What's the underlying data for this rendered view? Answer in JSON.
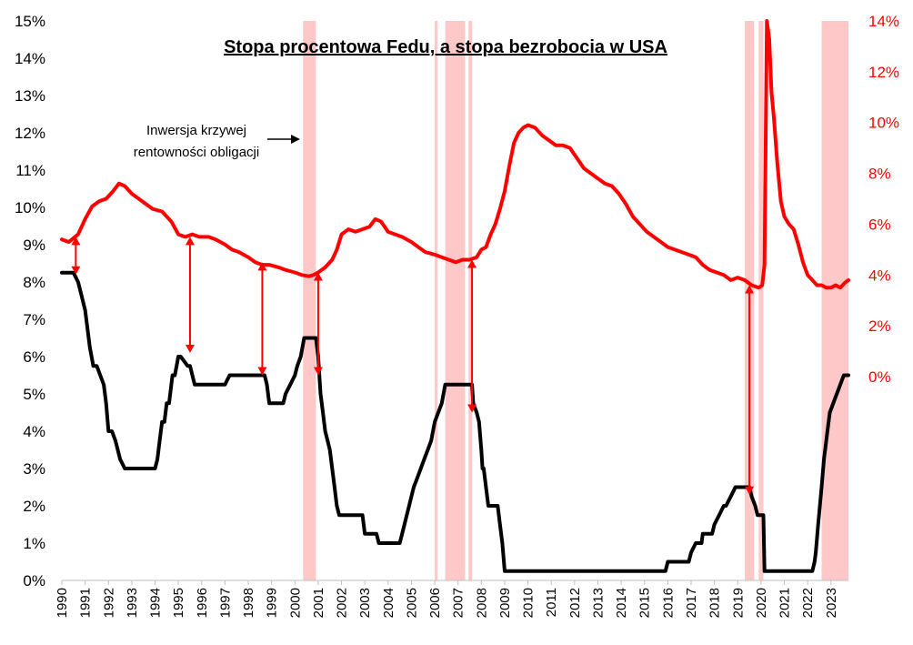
{
  "chart_data": {
    "type": "line",
    "title": "Stopa procentowa Fedu, a stopa bezrobocia w USA",
    "annotation": [
      "Inwersja krzywej",
      "rentowności obligacji"
    ],
    "colors": {
      "fed_rate": "#000000",
      "unemployment": "#ff0000",
      "inversion": "#ffc8c8",
      "arrow": "#ff0000"
    },
    "x_axis": {
      "range": [
        1990.0,
        2023.75
      ],
      "ticks": [
        "1990",
        "1991",
        "1992",
        "1993",
        "1994",
        "1995",
        "1996",
        "1997",
        "1998",
        "1999",
        "2000",
        "2001",
        "2002",
        "2003",
        "2004",
        "2005",
        "2006",
        "2007",
        "2008",
        "2009",
        "2010",
        "2011",
        "2012",
        "2013",
        "2014",
        "2015",
        "2016",
        "2017",
        "2018",
        "2019",
        "2020",
        "2021",
        "2022",
        "2023"
      ]
    },
    "y_left": {
      "range": [
        0,
        15
      ],
      "ticks": [
        "0%",
        "1%",
        "2%",
        "3%",
        "4%",
        "5%",
        "6%",
        "7%",
        "8%",
        "9%",
        "10%",
        "11%",
        "12%",
        "13%",
        "14%",
        "15%"
      ]
    },
    "y_right": {
      "range": [
        -2.2,
        14.0
      ],
      "ticks": [
        "0%",
        "2%",
        "4%",
        "6%",
        "8%",
        "10%",
        "12%",
        "14%"
      ]
    },
    "inversion_periods": [
      [
        2000.35,
        2000.9
      ],
      [
        2006.0,
        2006.1
      ],
      [
        2006.45,
        2007.3
      ],
      [
        2007.45,
        2007.6
      ],
      [
        2019.3,
        2019.7
      ],
      [
        2019.9,
        2020.1
      ],
      [
        2022.6,
        2023.75
      ]
    ],
    "series": [
      {
        "name": "",
        "axis": "left",
        "x": [
          1990.0,
          1990.5,
          1990.7,
          1990.8,
          1991.0,
          1991.1,
          1991.2,
          1991.35,
          1991.5,
          1991.8,
          1991.9,
          1992.0,
          1992.15,
          1992.3,
          1992.5,
          1992.7,
          1992.8,
          1993.0,
          1994.0,
          1994.1,
          1994.2,
          1994.3,
          1994.4,
          1994.5,
          1994.6,
          1994.75,
          1994.85,
          1995.0,
          1995.1,
          1995.4,
          1995.5,
          1995.7,
          1995.9,
          1996.1,
          1997.0,
          1997.2,
          1998.7,
          1998.8,
          1998.9,
          1999.5,
          1999.6,
          1999.8,
          2000.0,
          2000.1,
          2000.25,
          2000.4,
          2000.9,
          2001.0,
          2001.05,
          2001.1,
          2001.2,
          2001.3,
          2001.4,
          2001.5,
          2001.7,
          2001.8,
          2001.9,
          2002.0,
          2002.9,
          2003.0,
          2003.5,
          2003.6,
          2004.5,
          2004.6,
          2004.7,
          2004.8,
          2004.9,
          2005.0,
          2005.1,
          2005.25,
          2005.4,
          2005.55,
          2005.7,
          2005.85,
          2006.0,
          2006.15,
          2006.3,
          2006.45,
          2007.6,
          2007.65,
          2007.8,
          2007.9,
          2008.0,
          2008.05,
          2008.1,
          2008.25,
          2008.3,
          2008.4,
          2008.7,
          2008.8,
          2008.9,
          2009.0,
          2015.9,
          2016.0,
          2016.9,
          2017.0,
          2017.2,
          2017.45,
          2017.5,
          2017.9,
          2018.0,
          2018.2,
          2018.4,
          2018.5,
          2018.7,
          2018.9,
          2019.0,
          2019.5,
          2019.6,
          2019.75,
          2019.85,
          2020.1,
          2020.15,
          2022.2,
          2022.3,
          2022.35,
          2022.45,
          2022.6,
          2022.7,
          2022.85,
          2022.95,
          2023.1,
          2023.25,
          2023.4,
          2023.55,
          2023.75
        ],
        "values": [
          8.25,
          8.25,
          8.0,
          7.75,
          7.25,
          6.75,
          6.25,
          5.75,
          5.75,
          5.25,
          4.75,
          4.0,
          4.0,
          3.75,
          3.25,
          3.0,
          3.0,
          3.0,
          3.0,
          3.25,
          3.75,
          4.25,
          4.25,
          4.75,
          4.75,
          5.5,
          5.5,
          6.0,
          6.0,
          5.75,
          5.75,
          5.25,
          5.25,
          5.25,
          5.25,
          5.5,
          5.5,
          5.25,
          4.75,
          4.75,
          5.0,
          5.25,
          5.5,
          5.75,
          6.0,
          6.5,
          6.5,
          6.0,
          5.5,
          5.0,
          4.5,
          4.0,
          3.75,
          3.5,
          2.5,
          2.0,
          1.75,
          1.75,
          1.75,
          1.25,
          1.25,
          1.0,
          1.0,
          1.25,
          1.5,
          1.75,
          2.0,
          2.25,
          2.5,
          2.75,
          3.0,
          3.25,
          3.5,
          3.75,
          4.25,
          4.5,
          4.75,
          5.25,
          5.25,
          4.75,
          4.5,
          4.25,
          3.5,
          3.0,
          3.0,
          2.25,
          2.0,
          2.0,
          2.0,
          1.5,
          1.0,
          0.25,
          0.25,
          0.5,
          0.5,
          0.75,
          1.0,
          1.0,
          1.25,
          1.25,
          1.5,
          1.75,
          2.0,
          2.0,
          2.25,
          2.5,
          2.5,
          2.5,
          2.25,
          2.0,
          1.75,
          1.75,
          0.25,
          0.25,
          0.5,
          0.75,
          1.5,
          2.5,
          3.25,
          4.0,
          4.5,
          4.75,
          5.0,
          5.25,
          5.5,
          5.5
        ]
      },
      {
        "name": "",
        "axis": "right",
        "x": [
          1990.0,
          1990.3,
          1990.7,
          1991.0,
          1991.3,
          1991.6,
          1991.9,
          1992.2,
          1992.45,
          1992.7,
          1993.0,
          1993.3,
          1993.6,
          1993.9,
          1994.3,
          1994.7,
          1995.0,
          1995.3,
          1995.6,
          1995.9,
          1996.3,
          1996.6,
          1997.0,
          1997.3,
          1997.6,
          1998.0,
          1998.3,
          1998.6,
          1998.9,
          1999.3,
          1999.6,
          2000.0,
          2000.3,
          2000.6,
          2000.8,
          2001.0,
          2001.3,
          2001.6,
          2001.8,
          2002.0,
          2002.3,
          2002.6,
          2002.9,
          2003.2,
          2003.45,
          2003.7,
          2004.0,
          2004.3,
          2004.6,
          2005.0,
          2005.3,
          2005.6,
          2006.0,
          2006.3,
          2006.6,
          2006.9,
          2007.2,
          2007.5,
          2007.8,
          2008.0,
          2008.2,
          2008.4,
          2008.6,
          2008.8,
          2009.0,
          2009.2,
          2009.4,
          2009.6,
          2009.8,
          2010.0,
          2010.3,
          2010.6,
          2010.9,
          2011.2,
          2011.5,
          2011.8,
          2012.1,
          2012.4,
          2012.7,
          2013.0,
          2013.3,
          2013.6,
          2013.9,
          2014.2,
          2014.5,
          2014.8,
          2015.1,
          2015.4,
          2015.7,
          2016.0,
          2016.3,
          2016.6,
          2016.9,
          2017.2,
          2017.5,
          2017.8,
          2018.1,
          2018.4,
          2018.7,
          2019.0,
          2019.3,
          2019.6,
          2019.9,
          2020.05,
          2020.15,
          2020.25,
          2020.35,
          2020.45,
          2020.55,
          2020.7,
          2020.85,
          2021.0,
          2021.2,
          2021.4,
          2021.6,
          2021.8,
          2022.0,
          2022.2,
          2022.4,
          2022.6,
          2022.8,
          2023.0,
          2023.2,
          2023.4,
          2023.6,
          2023.75
        ],
        "values": [
          5.4,
          5.3,
          5.6,
          6.2,
          6.7,
          6.9,
          7.0,
          7.3,
          7.6,
          7.5,
          7.2,
          7.0,
          6.8,
          6.6,
          6.5,
          6.1,
          5.6,
          5.5,
          5.6,
          5.5,
          5.5,
          5.4,
          5.2,
          5.0,
          4.9,
          4.7,
          4.5,
          4.4,
          4.4,
          4.3,
          4.2,
          4.1,
          4.0,
          3.95,
          4.0,
          4.1,
          4.3,
          4.6,
          5.0,
          5.6,
          5.8,
          5.7,
          5.8,
          5.9,
          6.2,
          6.1,
          5.7,
          5.6,
          5.5,
          5.3,
          5.1,
          4.9,
          4.8,
          4.7,
          4.6,
          4.5,
          4.6,
          4.6,
          4.7,
          5.0,
          5.1,
          5.6,
          6.0,
          6.6,
          7.3,
          8.3,
          9.2,
          9.6,
          9.8,
          9.9,
          9.8,
          9.5,
          9.3,
          9.1,
          9.1,
          9.0,
          8.6,
          8.2,
          8.0,
          7.8,
          7.6,
          7.5,
          7.2,
          6.8,
          6.3,
          6.0,
          5.7,
          5.5,
          5.3,
          5.1,
          5.0,
          4.9,
          4.8,
          4.7,
          4.4,
          4.2,
          4.1,
          4.0,
          3.8,
          3.9,
          3.8,
          3.6,
          3.5,
          3.6,
          4.4,
          14.0,
          13.3,
          11.2,
          10.2,
          8.4,
          6.9,
          6.3,
          6.0,
          5.8,
          5.2,
          4.5,
          4.0,
          3.8,
          3.6,
          3.6,
          3.5,
          3.5,
          3.6,
          3.5,
          3.7,
          3.8
        ]
      }
    ],
    "arrows": [
      {
        "year": 1990.6,
        "from_right": 5.5,
        "to_left": 8.2
      },
      {
        "year": 1995.5,
        "from_right": 5.5,
        "to_left": 6.1
      },
      {
        "year": 1998.6,
        "from_right": 4.5,
        "to_left": 5.5
      },
      {
        "year": 2001.0,
        "from_right": 4.1,
        "to_left": 5.5
      },
      {
        "year": 2007.6,
        "from_right": 4.6,
        "to_left": 4.5
      },
      {
        "year": 2019.5,
        "from_right": 3.6,
        "to_left": 2.3
      }
    ]
  }
}
